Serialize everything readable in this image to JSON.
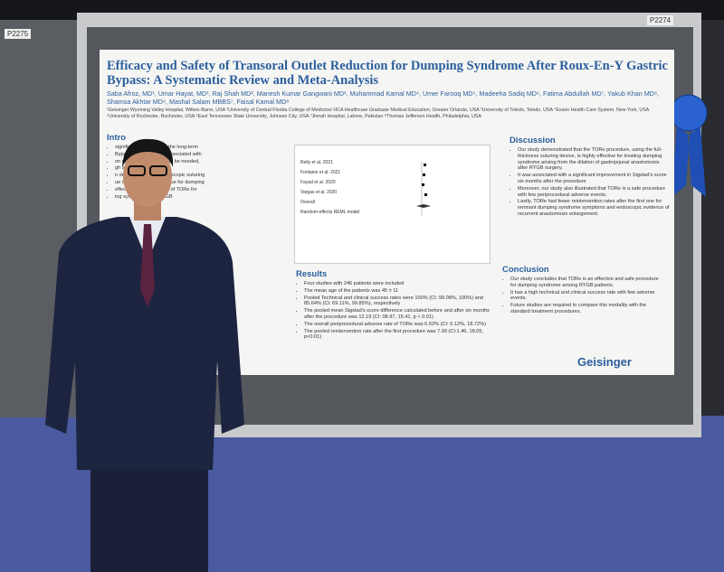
{
  "board_labels": [
    "P2275",
    "P2274"
  ],
  "poster": {
    "title": "Efficacy and Safety of Transoral Outlet Reduction for Dumping Syndrome After Roux-En-Y Gastric Bypass: A Systematic Review and Meta-Analysis",
    "authors": "Saba Afroz, MD¹, Umar Hayat, MD¹, Raj Shah MD², Manesh Kumar Gangwani MD³, Muhammad Kamal MD⁴, Umer Farooq MD⁵, Madeeha Sadiq MD⁶, Fatima Abdullah MD⁷, Yakub Khan MD⁸, Shamsa Akhtar MD⁹, Mashal Salam MBBS⁷, Faisal Kamal MD⁸",
    "affiliations": "¹Geisinger Wyoming Valley Hospital, Wilkes-Barre, USA ²University of Central Florida College of Medicine/ HCA Healthcare Graduate Medical Education, Greater Orlando, USA ³University of Toledo, Toledo, USA ⁴Essen Health Care System, New York, USA ⁵University of Rochester, Rochester, USA ⁶East Tennessee State University, Johnson City, USA ⁷Jinnah Hospital, Lahore, Pakistan ⁸Thomas Jefferson Health, Philadelphia, USA",
    "intro_heading": "Intro",
    "intro_fragments": [
      "significant limitations of the long-term",
      "Bypass (RYGB) and is associated with",
      "on of the dilated GJA may be needed,",
      "gh adverse event rate.",
      "n devitalization and endoscopic suturing",
      "ue is an effective technique for dumping",
      "effectiveness and safety of TORe for",
      "ing syndrome after RYGB"
    ],
    "forest_plot": {
      "rows": [
        "Relly et al. 2021",
        "Fontaine et al. 2021",
        "Fayad et al. 2020",
        "Vargas et al. 2020",
        "Overall"
      ],
      "footer": "Random-effects REML model"
    },
    "results": {
      "heading": "Results",
      "bullets": [
        "Four studies with 246 patients were included",
        "The mean age of the patients was 45 ± 11",
        "Pooled Technical and clinical success rates were 100% (CI: 99.08%, 100%) and 85.64% (CI: 69.11%, 99.85%), respectively",
        "The pooled mean Sigstad's score difference calculated before and after six months after the procedure was 12.19 (CI: 08.97, 15.41, p < 0.01)",
        "The overall periprocedural adverse rate of TORe was 6.52% (CI: 0.12%, 18.72%)",
        "The pooled reintervention rate after the first procedure was 7.99 (CI:1.46, 18.05, p<0.01)"
      ]
    },
    "discussion": {
      "heading": "Discussion",
      "bullets": [
        "Our study demonstrated that the TORe procedure, using the full-thickness suturing device, is highly effective for treating dumping syndrome arising from the dilation of gastrojejunal anastomosis after RYGB surgery.",
        "It was associated with a significant improvement in Sigstad's score six months after the procedure",
        "Moreover, our study also illustrated that TORe is a safe procedure with few periprocedural adverse events.",
        "Lastly, TORe had fewer reintervention rates after the first one for remnant dumping syndrome symptoms and endoscopic evidence of recurrent anastomosis enlargement."
      ]
    },
    "conclusion": {
      "heading": "Conclusion",
      "bullets": [
        "Our study concludes that TORe is an effective and safe procedure for dumping syndrome among RYGB patients.",
        "It has a high technical and clinical success rate with few adverse events.",
        "Future studies are required to compare this modality with the standard treatment procedures."
      ]
    },
    "logo": "Geisinger"
  }
}
